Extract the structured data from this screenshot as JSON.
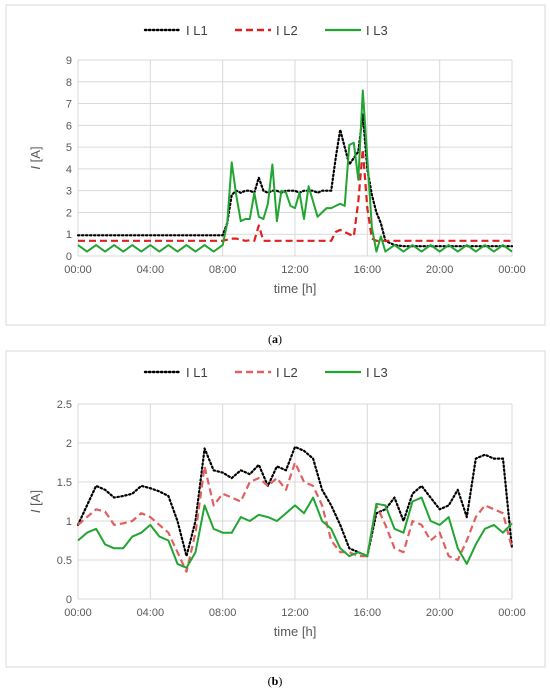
{
  "chart_data": [
    {
      "type": "line",
      "caption": "(a)",
      "xlabel": "time [h]",
      "ylabel": "I [A]",
      "ylim": [
        0,
        9
      ],
      "y_ticks": [
        "0",
        "1",
        "2",
        "3",
        "4",
        "5",
        "6",
        "7",
        "8",
        "9"
      ],
      "x_ticks": [
        "00:00",
        "04:00",
        "08:00",
        "12:00",
        "16:00",
        "20:00",
        "00:00"
      ],
      "xlim_hours": [
        0,
        24
      ],
      "grid": true,
      "legend_position": "top",
      "x_hours": [
        0.0,
        0.5,
        1.0,
        1.5,
        2.0,
        2.5,
        3.0,
        3.5,
        4.0,
        4.5,
        5.0,
        5.5,
        6.0,
        6.5,
        7.0,
        7.5,
        8.0,
        8.25,
        8.5,
        8.75,
        9.0,
        9.25,
        9.5,
        9.75,
        10.0,
        10.25,
        10.5,
        10.75,
        11.0,
        11.25,
        11.5,
        11.75,
        12.0,
        12.25,
        12.5,
        12.75,
        13.0,
        13.25,
        13.5,
        13.75,
        14.0,
        14.25,
        14.5,
        14.75,
        15.0,
        15.25,
        15.5,
        15.75,
        16.0,
        16.25,
        16.5,
        16.75,
        17.0,
        17.5,
        18.0,
        18.5,
        19.0,
        19.5,
        20.0,
        20.5,
        21.0,
        21.5,
        22.0,
        22.5,
        23.0,
        23.5,
        24.0
      ],
      "series": [
        {
          "name": "I L1",
          "color": "#000000",
          "dash": "dotted",
          "values": [
            0.95,
            0.95,
            0.95,
            0.95,
            0.95,
            0.95,
            0.95,
            0.95,
            0.95,
            0.95,
            0.95,
            0.95,
            0.95,
            0.95,
            0.95,
            0.95,
            0.95,
            1.5,
            2.8,
            3.0,
            2.9,
            3.0,
            3.0,
            2.9,
            3.6,
            3.0,
            2.9,
            3.0,
            3.0,
            2.9,
            3.0,
            3.0,
            3.0,
            2.9,
            3.0,
            3.0,
            3.0,
            2.9,
            3.0,
            3.0,
            3.0,
            4.5,
            5.8,
            5.0,
            4.2,
            4.5,
            4.8,
            6.5,
            4.0,
            2.8,
            2.0,
            1.5,
            0.7,
            0.5,
            0.45,
            0.45,
            0.45,
            0.45,
            0.45,
            0.45,
            0.45,
            0.45,
            0.45,
            0.45,
            0.45,
            0.45,
            0.45
          ]
        },
        {
          "name": "I L2",
          "color": "#e02020",
          "dash": "dashed",
          "values": [
            0.7,
            0.7,
            0.7,
            0.7,
            0.7,
            0.7,
            0.7,
            0.7,
            0.7,
            0.7,
            0.7,
            0.7,
            0.7,
            0.7,
            0.7,
            0.7,
            0.7,
            0.75,
            0.8,
            0.8,
            0.75,
            0.7,
            0.72,
            0.7,
            1.4,
            0.7,
            0.7,
            0.7,
            0.7,
            0.7,
            0.7,
            0.7,
            0.7,
            0.7,
            0.7,
            0.7,
            0.7,
            0.7,
            0.7,
            0.7,
            0.7,
            1.1,
            1.2,
            1.1,
            1.0,
            0.9,
            2.5,
            4.9,
            2.2,
            0.8,
            0.7,
            0.7,
            0.7,
            0.7,
            0.7,
            0.7,
            0.7,
            0.7,
            0.7,
            0.7,
            0.7,
            0.7,
            0.7,
            0.7,
            0.7,
            0.7,
            0.7
          ]
        },
        {
          "name": "I L3",
          "color": "#22a532",
          "dash": "solid",
          "values": [
            0.5,
            0.2,
            0.5,
            0.2,
            0.5,
            0.2,
            0.5,
            0.2,
            0.5,
            0.2,
            0.5,
            0.2,
            0.5,
            0.2,
            0.5,
            0.2,
            0.5,
            1.5,
            4.3,
            2.8,
            1.6,
            1.7,
            1.7,
            2.9,
            1.8,
            1.7,
            2.4,
            4.2,
            1.6,
            3.0,
            2.9,
            2.3,
            2.2,
            2.9,
            1.7,
            3.2,
            2.5,
            1.8,
            2.0,
            2.2,
            2.2,
            2.3,
            2.4,
            2.3,
            5.1,
            5.2,
            3.5,
            7.6,
            4.5,
            1.3,
            0.2,
            0.9,
            0.2,
            0.5,
            0.2,
            0.5,
            0.2,
            0.5,
            0.2,
            0.5,
            0.2,
            0.5,
            0.2,
            0.5,
            0.2,
            0.5,
            0.2
          ]
        }
      ]
    },
    {
      "type": "line",
      "caption": "(b)",
      "xlabel": "time [h]",
      "ylabel": "I [A]",
      "ylim": [
        0,
        2.5
      ],
      "y_ticks": [
        "0",
        "0.5",
        "1",
        "1.5",
        "2",
        "2.5"
      ],
      "x_ticks": [
        "00:00",
        "04:00",
        "08:00",
        "12:00",
        "16:00",
        "20:00",
        "00:00"
      ],
      "xlim_hours": [
        0,
        24
      ],
      "grid": true,
      "legend_position": "top",
      "x_hours": [
        0.0,
        0.5,
        1.0,
        1.5,
        2.0,
        2.5,
        3.0,
        3.5,
        4.0,
        4.5,
        5.0,
        5.5,
        6.0,
        6.5,
        7.0,
        7.5,
        8.0,
        8.5,
        9.0,
        9.5,
        10.0,
        10.5,
        11.0,
        11.5,
        12.0,
        12.5,
        13.0,
        13.5,
        14.0,
        14.5,
        15.0,
        15.5,
        16.0,
        16.5,
        17.0,
        17.5,
        18.0,
        18.5,
        19.0,
        19.5,
        20.0,
        20.5,
        21.0,
        21.5,
        22.0,
        22.5,
        23.0,
        23.5,
        24.0
      ],
      "series": [
        {
          "name": "I L1",
          "color": "#000000",
          "dash": "dotted",
          "values": [
            0.95,
            1.2,
            1.45,
            1.4,
            1.3,
            1.32,
            1.35,
            1.45,
            1.42,
            1.38,
            1.32,
            1.0,
            0.55,
            1.0,
            1.93,
            1.65,
            1.62,
            1.55,
            1.65,
            1.6,
            1.72,
            1.45,
            1.7,
            1.65,
            1.95,
            1.9,
            1.8,
            1.4,
            1.2,
            0.95,
            0.65,
            0.6,
            0.55,
            1.1,
            1.15,
            1.3,
            1.0,
            1.35,
            1.45,
            1.3,
            1.15,
            1.2,
            1.4,
            1.05,
            1.8,
            1.85,
            1.8,
            1.8,
            0.65
          ]
        },
        {
          "name": "I L2",
          "color": "#e06060",
          "dash": "dashed",
          "values": [
            0.95,
            1.05,
            1.15,
            1.12,
            0.95,
            0.97,
            1.0,
            1.1,
            1.05,
            0.95,
            0.85,
            0.6,
            0.35,
            0.85,
            1.7,
            1.2,
            1.35,
            1.3,
            1.25,
            1.5,
            1.55,
            1.45,
            1.55,
            1.4,
            1.75,
            1.5,
            1.45,
            1.2,
            0.75,
            0.6,
            0.6,
            0.55,
            0.55,
            1.2,
            0.95,
            0.65,
            0.6,
            1.0,
            0.95,
            0.75,
            0.85,
            0.55,
            0.5,
            0.75,
            1.05,
            1.2,
            1.15,
            1.1,
            0.65
          ]
        },
        {
          "name": "I L3",
          "color": "#22a532",
          "dash": "solid",
          "values": [
            0.75,
            0.85,
            0.9,
            0.7,
            0.65,
            0.65,
            0.8,
            0.85,
            0.95,
            0.8,
            0.75,
            0.45,
            0.4,
            0.6,
            1.2,
            0.9,
            0.85,
            0.85,
            1.05,
            1.0,
            1.08,
            1.05,
            1.0,
            1.1,
            1.2,
            1.1,
            1.3,
            1.0,
            0.9,
            0.65,
            0.55,
            0.6,
            0.55,
            1.22,
            1.2,
            0.9,
            0.85,
            1.25,
            1.3,
            1.0,
            0.95,
            1.05,
            0.65,
            0.45,
            0.7,
            0.9,
            0.95,
            0.85,
            0.97
          ]
        }
      ]
    }
  ]
}
